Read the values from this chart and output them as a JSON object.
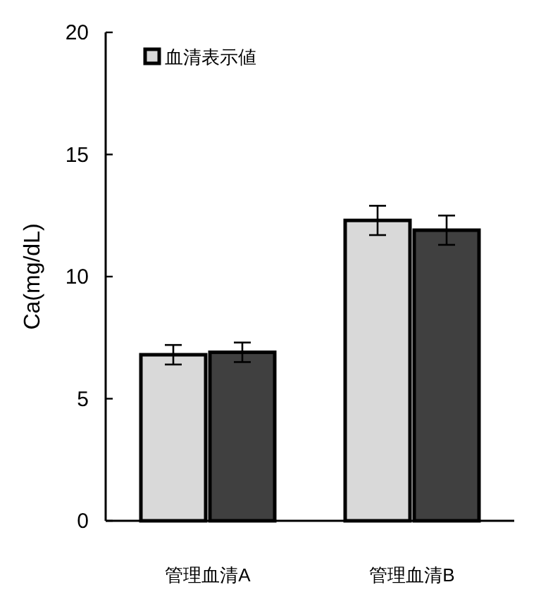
{
  "chart_data": {
    "type": "bar",
    "ylabel": "Ca(mg/dL)",
    "categories": [
      "管理血清A",
      "管理血清B"
    ],
    "series": [
      {
        "name": "血清表示値",
        "color": "#d9d9d9",
        "values": [
          6.8,
          12.3
        ],
        "errors": [
          0.4,
          0.6
        ]
      },
      {
        "color": "#404040",
        "values": [
          6.9,
          11.9
        ],
        "errors": [
          0.4,
          0.6
        ]
      }
    ],
    "ylim": [
      0,
      20
    ],
    "yticks": [
      0,
      5,
      10,
      15,
      20
    ],
    "grid": false,
    "legend": "top left"
  }
}
